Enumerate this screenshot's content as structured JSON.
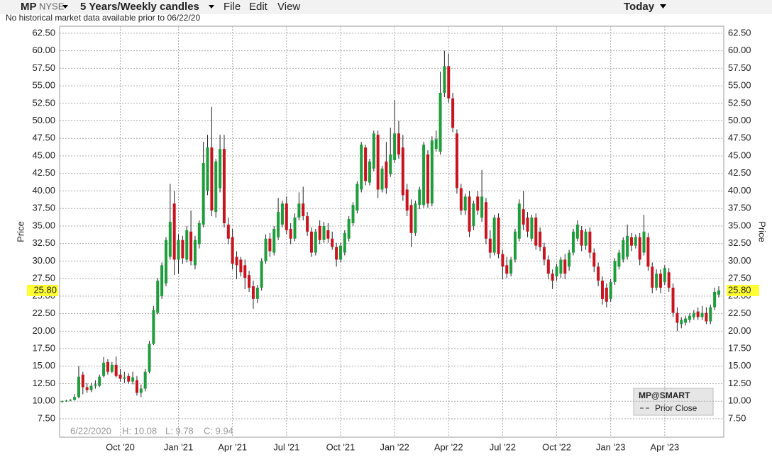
{
  "toolbar": {
    "symbol": "MP",
    "exchange": "NYSE",
    "period": "5 Years/Weekly candles",
    "menus": [
      "File",
      "Edit",
      "View"
    ],
    "range": "Today"
  },
  "notice": "No historical market data available prior to 06/22/20",
  "chart_data": {
    "type": "candlestick",
    "y_label": "Price",
    "up_color": "#1f9c3c",
    "down_color": "#c8141e",
    "grid": true,
    "ylim": [
      4.87,
      63.5
    ],
    "xlim": [
      -0.6,
      159.2
    ],
    "yticks": [
      {
        "value": 7.5,
        "label": "7.50"
      },
      {
        "value": 10,
        "label": "10.00"
      },
      {
        "value": 12.5,
        "label": "12.50"
      },
      {
        "value": 15,
        "label": "15.00"
      },
      {
        "value": 17.5,
        "label": "17.50"
      },
      {
        "value": 20,
        "label": "20.00"
      },
      {
        "value": 22.5,
        "label": "22.50"
      },
      {
        "value": 25,
        "label": "25.00"
      },
      {
        "value": 27.5,
        "label": "27.50"
      },
      {
        "value": 30,
        "label": "30.00"
      },
      {
        "value": 32.5,
        "label": "32.50"
      },
      {
        "value": 35,
        "label": "35.00"
      },
      {
        "value": 37.5,
        "label": "37.50"
      },
      {
        "value": 40,
        "label": "40.00"
      },
      {
        "value": 42.5,
        "label": "42.50"
      },
      {
        "value": 45,
        "label": "45.00"
      },
      {
        "value": 47.5,
        "label": "47.50"
      },
      {
        "value": 50,
        "label": "50.00"
      },
      {
        "value": 52.5,
        "label": "52.50"
      },
      {
        "value": 55,
        "label": "55.00"
      },
      {
        "value": 57.5,
        "label": "57.50"
      },
      {
        "value": 60,
        "label": "60.00"
      },
      {
        "value": 62.5,
        "label": "62.50"
      }
    ],
    "xticks": [
      {
        "value": 14,
        "label": "Oct '20"
      },
      {
        "value": 28,
        "label": "Jan '21"
      },
      {
        "value": 41,
        "label": "Apr '21"
      },
      {
        "value": 54,
        "label": "Jul '21"
      },
      {
        "value": 67,
        "label": "Oct '21"
      },
      {
        "value": 80,
        "label": "Jan '22"
      },
      {
        "value": 93,
        "label": "Apr '22"
      },
      {
        "value": 106,
        "label": "Jul '22"
      },
      {
        "value": 119,
        "label": "Oct '22"
      },
      {
        "value": 132,
        "label": "Jan '23"
      },
      {
        "value": 145,
        "label": "Apr '23"
      }
    ],
    "last_price": {
      "value": 25.8,
      "label": "25.80"
    },
    "hover": {
      "date": "6/22/2020",
      "high": "H: 10.08",
      "low": "L: 9.78",
      "close": "C: 9.94"
    },
    "legend": {
      "title": "MP@SMART",
      "prior_close": "Prior Close"
    },
    "candles": [
      [
        9.9,
        10.1,
        9.8,
        10.0
      ],
      [
        10.0,
        10.2,
        9.9,
        10.1
      ],
      [
        10.1,
        10.3,
        10.0,
        10.2
      ],
      [
        10.2,
        11.0,
        10.1,
        10.6
      ],
      [
        10.6,
        15.0,
        10.4,
        13.5
      ],
      [
        13.8,
        14.2,
        11.0,
        12.0
      ],
      [
        12.0,
        12.6,
        11.2,
        11.6
      ],
      [
        11.6,
        12.6,
        11.3,
        12.2
      ],
      [
        12.2,
        13.0,
        11.8,
        12.4
      ],
      [
        12.2,
        13.8,
        12.0,
        13.5
      ],
      [
        13.6,
        16.3,
        13.4,
        15.5
      ],
      [
        15.6,
        16.0,
        13.8,
        14.2
      ],
      [
        14.2,
        15.6,
        14.0,
        15.2
      ],
      [
        15.2,
        16.4,
        13.4,
        13.6
      ],
      [
        13.8,
        14.6,
        12.8,
        13.2
      ],
      [
        13.2,
        14.2,
        12.6,
        13.4
      ],
      [
        13.6,
        14.0,
        12.5,
        12.8
      ],
      [
        12.8,
        14.2,
        12.4,
        13.4
      ],
      [
        13.0,
        13.6,
        10.8,
        11.2
      ],
      [
        11.2,
        12.4,
        10.6,
        11.8
      ],
      [
        11.8,
        14.6,
        11.4,
        14.2
      ],
      [
        14.2,
        18.6,
        14.0,
        18.2
      ],
      [
        18.2,
        23.6,
        18.0,
        23.0
      ],
      [
        22.6,
        27.6,
        22.4,
        27.2
      ],
      [
        25.0,
        29.8,
        24.6,
        29.4
      ],
      [
        26.8,
        33.4,
        26.4,
        33.0
      ],
      [
        30.6,
        41.0,
        30.2,
        35.6
      ],
      [
        38.2,
        40.0,
        28.0,
        30.2
      ],
      [
        30.2,
        33.8,
        28.2,
        33.0
      ],
      [
        33.0,
        33.6,
        29.6,
        30.4
      ],
      [
        30.2,
        35.0,
        29.8,
        34.4
      ],
      [
        34.2,
        37.2,
        29.4,
        30.0
      ],
      [
        29.4,
        33.6,
        28.8,
        33.0
      ],
      [
        32.4,
        35.8,
        31.8,
        35.4
      ],
      [
        35.2,
        47.0,
        34.8,
        44.0
      ],
      [
        40.0,
        48.0,
        39.4,
        46.2
      ],
      [
        46.2,
        52.0,
        36.4,
        37.2
      ],
      [
        37.0,
        44.6,
        36.2,
        44.2
      ],
      [
        40.4,
        48.0,
        39.8,
        46.0
      ],
      [
        46.0,
        48.0,
        34.8,
        35.4
      ],
      [
        35.2,
        36.2,
        32.4,
        33.2
      ],
      [
        33.4,
        34.6,
        28.8,
        29.6
      ],
      [
        30.6,
        31.4,
        27.4,
        29.4
      ],
      [
        30.2,
        30.6,
        27.8,
        28.4
      ],
      [
        29.4,
        30.2,
        26.0,
        27.6
      ],
      [
        28.0,
        28.6,
        25.6,
        26.2
      ],
      [
        26.4,
        27.2,
        23.2,
        24.6
      ],
      [
        24.6,
        26.6,
        24.0,
        26.2
      ],
      [
        26.2,
        30.4,
        25.8,
        30.0
      ],
      [
        30.0,
        33.8,
        29.6,
        33.2
      ],
      [
        33.2,
        34.0,
        30.6,
        31.4
      ],
      [
        31.2,
        35.0,
        30.8,
        34.6
      ],
      [
        33.4,
        39.0,
        33.0,
        37.0
      ],
      [
        35.2,
        38.6,
        34.8,
        38.2
      ],
      [
        38.2,
        39.2,
        33.8,
        34.4
      ],
      [
        34.6,
        35.4,
        32.4,
        33.2
      ],
      [
        33.2,
        36.8,
        32.8,
        36.2
      ],
      [
        36.2,
        39.8,
        35.8,
        38.2
      ],
      [
        38.2,
        40.6,
        35.8,
        36.4
      ],
      [
        36.4,
        37.0,
        33.6,
        34.2
      ],
      [
        34.2,
        34.8,
        30.6,
        31.2
      ],
      [
        31.2,
        34.6,
        30.8,
        34.2
      ],
      [
        35.0,
        35.8,
        32.4,
        33.0
      ],
      [
        33.0,
        35.6,
        32.6,
        35.0
      ],
      [
        34.4,
        35.4,
        32.6,
        33.2
      ],
      [
        33.2,
        34.2,
        31.6,
        32.0
      ],
      [
        32.0,
        32.6,
        29.2,
        30.2
      ],
      [
        30.2,
        32.6,
        29.8,
        32.2
      ],
      [
        31.2,
        34.4,
        30.8,
        34.0
      ],
      [
        33.2,
        36.4,
        32.8,
        36.0
      ],
      [
        35.4,
        38.4,
        35.0,
        38.0
      ],
      [
        37.2,
        41.4,
        36.8,
        41.0
      ],
      [
        40.2,
        47.0,
        39.8,
        46.6
      ],
      [
        46.2,
        46.6,
        40.8,
        41.4
      ],
      [
        41.2,
        44.6,
        40.8,
        44.2
      ],
      [
        43.2,
        48.6,
        42.8,
        48.2
      ],
      [
        48.0,
        48.6,
        39.0,
        40.2
      ],
      [
        40.2,
        43.6,
        39.8,
        43.2
      ],
      [
        44.2,
        47.0,
        39.6,
        40.4
      ],
      [
        42.4,
        49.0,
        42.0,
        45.2
      ],
      [
        44.4,
        53.0,
        44.0,
        48.2
      ],
      [
        48.2,
        50.0,
        44.6,
        45.2
      ],
      [
        46.2,
        48.0,
        38.6,
        39.4
      ],
      [
        40.2,
        41.0,
        36.4,
        37.2
      ],
      [
        38.0,
        38.8,
        32.0,
        34.0
      ],
      [
        34.0,
        38.6,
        33.6,
        38.2
      ],
      [
        38.0,
        40.6,
        37.4,
        40.2
      ],
      [
        38.0,
        47.0,
        37.6,
        46.6
      ],
      [
        45.2,
        45.8,
        37.6,
        38.2
      ],
      [
        38.2,
        47.8,
        37.8,
        47.2
      ],
      [
        46.0,
        48.6,
        45.6,
        47.4
      ],
      [
        45.6,
        57.0,
        45.2,
        54.0
      ],
      [
        54.0,
        60.0,
        53.4,
        57.8
      ],
      [
        57.8,
        59.6,
        52.6,
        53.2
      ],
      [
        53.2,
        54.0,
        48.4,
        49.0
      ],
      [
        48.2,
        48.8,
        39.6,
        40.4
      ],
      [
        40.4,
        41.0,
        36.6,
        37.2
      ],
      [
        37.2,
        39.6,
        36.6,
        39.2
      ],
      [
        39.2,
        40.0,
        33.4,
        34.2
      ],
      [
        35.0,
        38.6,
        34.4,
        38.2
      ],
      [
        39.2,
        40.0,
        36.6,
        37.2
      ],
      [
        36.2,
        43.0,
        35.6,
        39.2
      ],
      [
        38.4,
        39.0,
        32.4,
        33.2
      ],
      [
        33.2,
        34.4,
        30.4,
        31.2
      ],
      [
        31.2,
        36.6,
        30.8,
        36.2
      ],
      [
        36.2,
        36.8,
        30.4,
        31.0
      ],
      [
        31.0,
        31.6,
        27.4,
        29.2
      ],
      [
        29.4,
        30.6,
        27.6,
        28.2
      ],
      [
        28.2,
        30.6,
        27.8,
        30.2
      ],
      [
        30.2,
        34.6,
        29.8,
        34.2
      ],
      [
        33.2,
        38.8,
        32.8,
        38.2
      ],
      [
        37.4,
        40.0,
        34.4,
        35.2
      ],
      [
        36.2,
        37.0,
        33.4,
        34.2
      ],
      [
        33.2,
        36.6,
        32.8,
        36.2
      ],
      [
        36.2,
        36.8,
        31.6,
        32.2
      ],
      [
        34.2,
        34.8,
        31.4,
        32.0
      ],
      [
        32.0,
        32.6,
        29.4,
        30.2
      ],
      [
        30.2,
        30.8,
        27.4,
        28.2
      ],
      [
        28.2,
        28.8,
        26.0,
        27.2
      ],
      [
        27.8,
        29.6,
        27.2,
        29.2
      ],
      [
        28.2,
        30.6,
        27.6,
        30.2
      ],
      [
        30.2,
        31.0,
        27.4,
        28.2
      ],
      [
        29.2,
        31.6,
        28.6,
        31.2
      ],
      [
        31.2,
        34.6,
        30.8,
        34.2
      ],
      [
        33.2,
        35.8,
        32.8,
        35.2
      ],
      [
        34.4,
        35.0,
        31.4,
        32.2
      ],
      [
        32.2,
        34.6,
        31.6,
        34.2
      ],
      [
        34.2,
        34.8,
        30.4,
        31.2
      ],
      [
        31.2,
        31.8,
        28.4,
        29.2
      ],
      [
        29.2,
        29.8,
        26.4,
        27.2
      ],
      [
        27.2,
        27.8,
        23.8,
        24.6
      ],
      [
        26.2,
        26.8,
        23.4,
        24.2
      ],
      [
        24.6,
        27.4,
        24.2,
        27.0
      ],
      [
        27.0,
        30.4,
        26.6,
        30.0
      ],
      [
        29.2,
        31.6,
        28.8,
        31.2
      ],
      [
        30.2,
        33.4,
        29.8,
        33.0
      ],
      [
        30.6,
        35.2,
        30.2,
        33.6
      ],
      [
        33.4,
        34.0,
        31.4,
        32.2
      ],
      [
        32.2,
        33.8,
        31.8,
        33.4
      ],
      [
        33.4,
        34.0,
        29.4,
        30.2
      ],
      [
        31.2,
        36.6,
        30.8,
        34.2
      ],
      [
        33.4,
        34.0,
        28.6,
        29.2
      ],
      [
        29.2,
        29.8,
        25.4,
        26.2
      ],
      [
        26.2,
        28.8,
        25.8,
        28.2
      ],
      [
        28.2,
        28.8,
        25.4,
        26.2
      ],
      [
        27.0,
        29.4,
        26.6,
        29.0
      ],
      [
        28.4,
        29.0,
        25.6,
        26.2
      ],
      [
        26.2,
        26.8,
        22.0,
        22.6
      ],
      [
        22.6,
        23.4,
        20.0,
        21.2
      ],
      [
        21.0,
        22.0,
        20.4,
        21.6
      ],
      [
        21.2,
        22.2,
        20.8,
        21.8
      ],
      [
        21.6,
        22.6,
        21.2,
        22.2
      ],
      [
        22.0,
        23.0,
        21.6,
        22.6
      ],
      [
        22.8,
        23.4,
        21.6,
        22.0
      ],
      [
        22.0,
        23.6,
        21.6,
        22.6
      ],
      [
        22.6,
        23.4,
        21.0,
        21.4
      ],
      [
        21.4,
        23.8,
        21.0,
        23.4
      ],
      [
        23.4,
        26.2,
        23.0,
        25.6
      ],
      [
        25.2,
        26.4,
        24.8,
        25.8
      ]
    ]
  }
}
